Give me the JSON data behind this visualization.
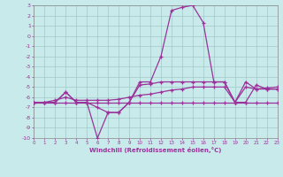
{
  "xlabel": "Windchill (Refroidissement éolien,°C)",
  "xlim": [
    0,
    23
  ],
  "ylim": [
    -10,
    3
  ],
  "xticks": [
    0,
    1,
    2,
    3,
    4,
    5,
    6,
    7,
    8,
    9,
    10,
    11,
    12,
    13,
    14,
    15,
    16,
    17,
    18,
    19,
    20,
    21,
    22,
    23
  ],
  "yticks": [
    3,
    2,
    1,
    0,
    -1,
    -2,
    -3,
    -4,
    -5,
    -6,
    -7,
    -8,
    -9,
    -10
  ],
  "bg_color": "#c8eaea",
  "grid_color": "#a0c8c8",
  "line_color": "#993399",
  "series": [
    {
      "x": [
        0,
        1,
        2,
        3,
        4,
        5,
        6,
        7,
        8,
        9,
        10,
        11,
        12,
        13,
        14,
        15,
        16,
        17,
        18,
        19,
        20,
        21,
        22,
        23
      ],
      "y": [
        -6.5,
        -6.5,
        -6.5,
        -6.5,
        -6.5,
        -6.5,
        -6.5,
        -6.5,
        -6.5,
        -6.5,
        -6.5,
        -6.5,
        -6.5,
        -6.5,
        -6.5,
        -6.5,
        -6.5,
        -6.5,
        -6.5,
        -6.5,
        -6.5,
        -6.5,
        -6.5,
        -6.5
      ]
    },
    {
      "x": [
        0,
        1,
        2,
        3,
        4,
        5,
        6,
        7,
        8,
        9,
        10,
        11,
        12,
        13,
        14,
        15,
        16,
        17,
        18,
        19,
        20,
        21,
        22,
        23
      ],
      "y": [
        -6.5,
        -6.5,
        -6.5,
        -5.5,
        -6.5,
        -6.5,
        -10.0,
        -7.5,
        -7.5,
        -6.5,
        -4.8,
        -4.7,
        -4.5,
        -4.5,
        -4.5,
        -4.5,
        -4.5,
        -4.5,
        -4.5,
        -6.5,
        -4.5,
        -5.2,
        -5.2,
        -5.2
      ]
    },
    {
      "x": [
        0,
        1,
        2,
        3,
        4,
        5,
        6,
        7,
        8,
        9,
        10,
        11,
        12,
        13,
        14,
        15,
        16,
        17,
        18,
        19,
        20,
        21,
        22,
        23
      ],
      "y": [
        -6.5,
        -6.5,
        -6.5,
        -5.5,
        -6.5,
        -6.5,
        -7.0,
        -7.5,
        -7.5,
        -6.5,
        -4.5,
        -4.5,
        -2.0,
        2.5,
        2.8,
        3.0,
        1.3,
        -4.5,
        -4.5,
        -6.5,
        -6.5,
        -4.8,
        -5.2,
        -5.2
      ]
    },
    {
      "x": [
        0,
        1,
        2,
        3,
        4,
        5,
        6,
        7,
        8,
        9,
        10,
        11,
        12,
        13,
        14,
        15,
        16,
        17,
        18,
        19,
        20,
        21,
        22,
        23
      ],
      "y": [
        -6.5,
        -6.5,
        -6.3,
        -6.0,
        -6.3,
        -6.3,
        -6.3,
        -6.3,
        -6.2,
        -6.0,
        -5.8,
        -5.7,
        -5.5,
        -5.3,
        -5.2,
        -5.0,
        -5.0,
        -5.0,
        -5.0,
        -6.5,
        -5.0,
        -5.2,
        -5.1,
        -5.0
      ]
    }
  ]
}
